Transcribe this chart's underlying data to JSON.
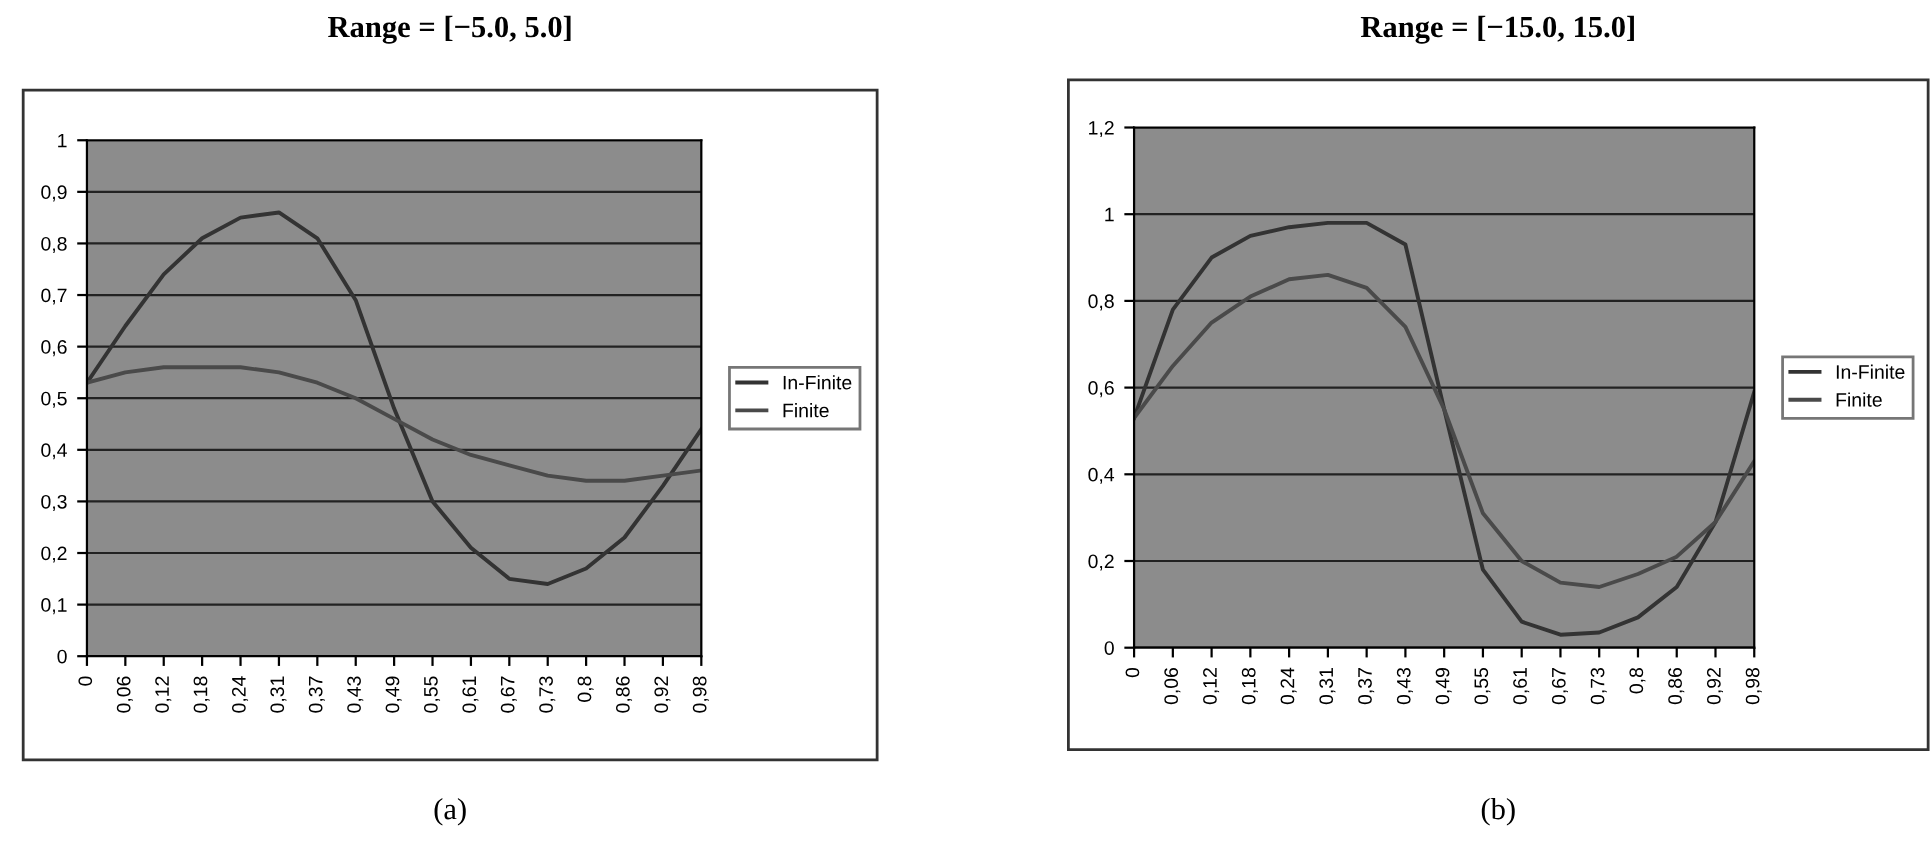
{
  "chart_data": [
    {
      "type": "line",
      "title": "Range = [−5.0, 5.0]",
      "categories": [
        "0",
        "0,06",
        "0,12",
        "0,18",
        "0,24",
        "0,31",
        "0,37",
        "0,43",
        "0,49",
        "0,55",
        "0,61",
        "0,67",
        "0,73",
        "0,8",
        "0,86",
        "0,92",
        "0,98"
      ],
      "series": [
        {
          "name": "In-Finite",
          "color": "#333333",
          "values": [
            0.53,
            0.64,
            0.74,
            0.81,
            0.85,
            0.86,
            0.81,
            0.69,
            0.48,
            0.3,
            0.21,
            0.15,
            0.14,
            0.17,
            0.23,
            0.33,
            0.44
          ]
        },
        {
          "name": "Finite",
          "color": "#4a4a4a",
          "values": [
            0.53,
            0.55,
            0.56,
            0.56,
            0.56,
            0.55,
            0.53,
            0.5,
            0.46,
            0.42,
            0.39,
            0.37,
            0.35,
            0.34,
            0.34,
            0.35,
            0.36
          ]
        }
      ],
      "ylim": [
        0,
        1
      ],
      "yticks": [
        0,
        {
          "value": 0.1,
          "label": "0,1"
        },
        {
          "value": 0.2,
          "label": "0,2"
        },
        {
          "value": 0.3,
          "label": "0,3"
        },
        {
          "value": 0.4,
          "label": "0,4"
        },
        {
          "value": 0.5,
          "label": "0,5"
        },
        {
          "value": 0.6,
          "label": "0,6"
        },
        {
          "value": 0.7,
          "label": "0,7"
        },
        {
          "value": 0.8,
          "label": "0,8"
        },
        {
          "value": 0.9,
          "label": "0,9"
        },
        1
      ],
      "grid": "y",
      "legend": "right",
      "marker": "none",
      "line_style": "solid",
      "annotations": [
        "(a)"
      ]
    },
    {
      "type": "line",
      "title": "Range = [−15.0, 15.0]",
      "categories": [
        "0",
        "0,06",
        "0,12",
        "0,18",
        "0,24",
        "0,31",
        "0,37",
        "0,43",
        "0,49",
        "0,55",
        "0,61",
        "0,67",
        "0,73",
        "0,8",
        "0,86",
        "0,92",
        "0,98"
      ],
      "series": [
        {
          "name": "In-Finite",
          "color": "#333333",
          "values": [
            0.53,
            0.78,
            0.9,
            0.95,
            0.97,
            0.98,
            0.98,
            0.93,
            0.55,
            0.18,
            0.06,
            0.03,
            0.035,
            0.07,
            0.14,
            0.29,
            0.59
          ]
        },
        {
          "name": "Finite",
          "color": "#4a4a4a",
          "values": [
            0.53,
            0.65,
            0.75,
            0.81,
            0.85,
            0.86,
            0.83,
            0.74,
            0.55,
            0.31,
            0.2,
            0.15,
            0.14,
            0.17,
            0.21,
            0.29,
            0.43
          ]
        }
      ],
      "ylim": [
        0,
        1.2
      ],
      "yticks": [
        0,
        {
          "value": 0.2,
          "label": "0,2"
        },
        {
          "value": 0.4,
          "label": "0,4"
        },
        {
          "value": 0.6,
          "label": "0,6"
        },
        {
          "value": 0.8,
          "label": "0,8"
        },
        1,
        {
          "value": 1.2,
          "label": "1,2"
        }
      ],
      "grid": "y",
      "legend": "right",
      "marker": "none",
      "line_style": "solid",
      "annotations": [
        "(b)"
      ]
    }
  ]
}
